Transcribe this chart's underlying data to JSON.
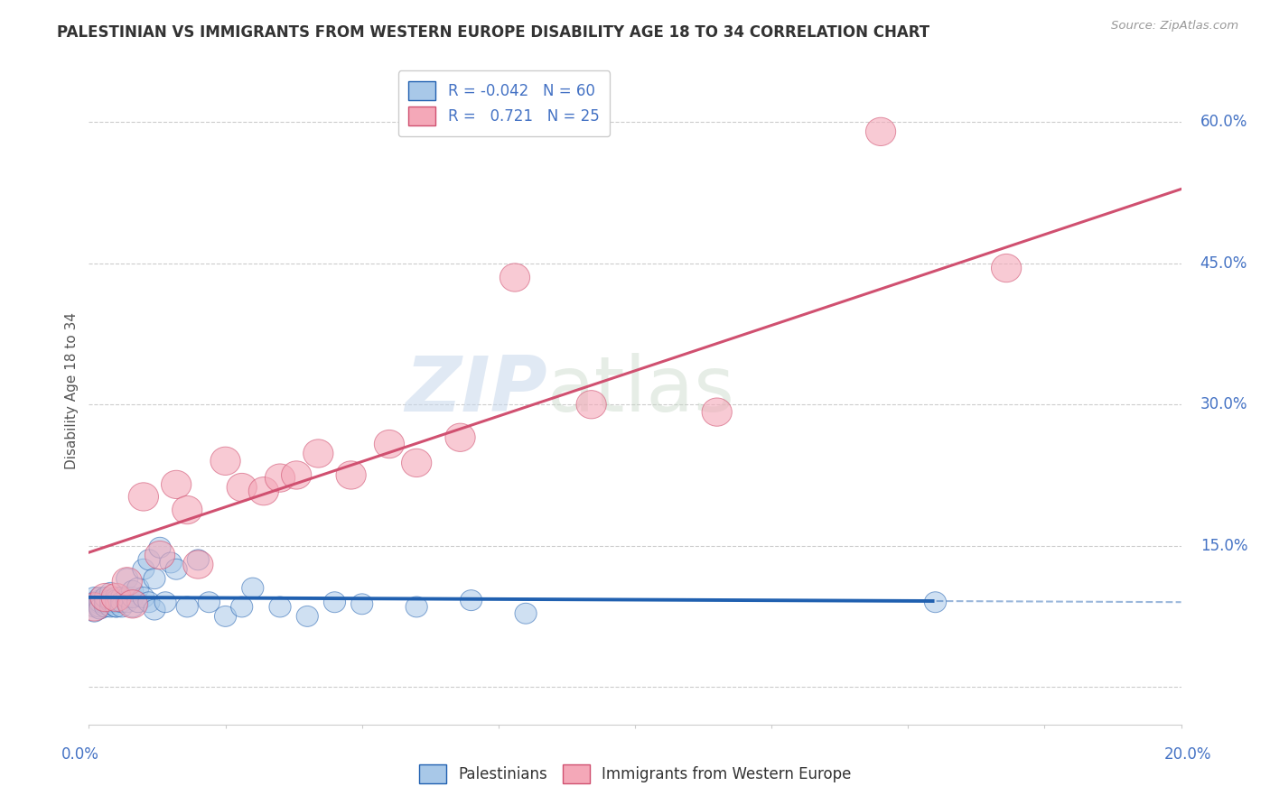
{
  "title": "PALESTINIAN VS IMMIGRANTS FROM WESTERN EUROPE DISABILITY AGE 18 TO 34 CORRELATION CHART",
  "source": "Source: ZipAtlas.com",
  "ylabel": "Disability Age 18 to 34",
  "xlim": [
    0.0,
    0.2
  ],
  "ylim": [
    -0.04,
    0.67
  ],
  "watermark_zip": "ZIP",
  "watermark_atlas": "atlas",
  "blue_color": "#a8c8e8",
  "pink_color": "#f4a8b8",
  "blue_line_color": "#2060b0",
  "pink_line_color": "#d05070",
  "title_color": "#333333",
  "axis_label_color": "#4472c4",
  "legend_text_color": "#4472c4",
  "background_color": "#ffffff",
  "grid_color": "#cccccc",
  "palestinians_x": [
    0.001,
    0.001,
    0.001,
    0.001,
    0.002,
    0.002,
    0.002,
    0.002,
    0.002,
    0.002,
    0.003,
    0.003,
    0.003,
    0.003,
    0.003,
    0.003,
    0.004,
    0.004,
    0.004,
    0.004,
    0.005,
    0.005,
    0.005,
    0.005,
    0.005,
    0.006,
    0.006,
    0.006,
    0.007,
    0.007,
    0.007,
    0.008,
    0.008,
    0.008,
    0.009,
    0.009,
    0.01,
    0.01,
    0.011,
    0.011,
    0.012,
    0.012,
    0.013,
    0.014,
    0.015,
    0.016,
    0.018,
    0.02,
    0.022,
    0.025,
    0.028,
    0.03,
    0.035,
    0.04,
    0.045,
    0.05,
    0.06,
    0.07,
    0.08,
    0.155
  ],
  "palestinians_y": [
    0.09,
    0.085,
    0.095,
    0.08,
    0.092,
    0.088,
    0.085,
    0.095,
    0.09,
    0.083,
    0.095,
    0.088,
    0.092,
    0.085,
    0.09,
    0.095,
    0.1,
    0.085,
    0.09,
    0.092,
    0.095,
    0.085,
    0.09,
    0.085,
    0.092,
    0.095,
    0.085,
    0.09,
    0.115,
    0.09,
    0.095,
    0.085,
    0.095,
    0.102,
    0.09,
    0.105,
    0.125,
    0.095,
    0.135,
    0.09,
    0.115,
    0.082,
    0.148,
    0.09,
    0.132,
    0.125,
    0.085,
    0.135,
    0.09,
    0.075,
    0.085,
    0.105,
    0.085,
    0.075,
    0.09,
    0.088,
    0.085,
    0.092,
    0.078,
    0.09
  ],
  "immigrants_x": [
    0.001,
    0.003,
    0.005,
    0.007,
    0.008,
    0.01,
    0.013,
    0.016,
    0.018,
    0.02,
    0.025,
    0.028,
    0.032,
    0.035,
    0.038,
    0.042,
    0.048,
    0.055,
    0.06,
    0.068,
    0.078,
    0.092,
    0.115,
    0.145,
    0.168
  ],
  "immigrants_y": [
    0.085,
    0.095,
    0.095,
    0.112,
    0.088,
    0.202,
    0.14,
    0.215,
    0.188,
    0.13,
    0.24,
    0.212,
    0.208,
    0.222,
    0.225,
    0.248,
    0.225,
    0.258,
    0.238,
    0.265,
    0.435,
    0.3,
    0.292,
    0.59,
    0.445
  ]
}
